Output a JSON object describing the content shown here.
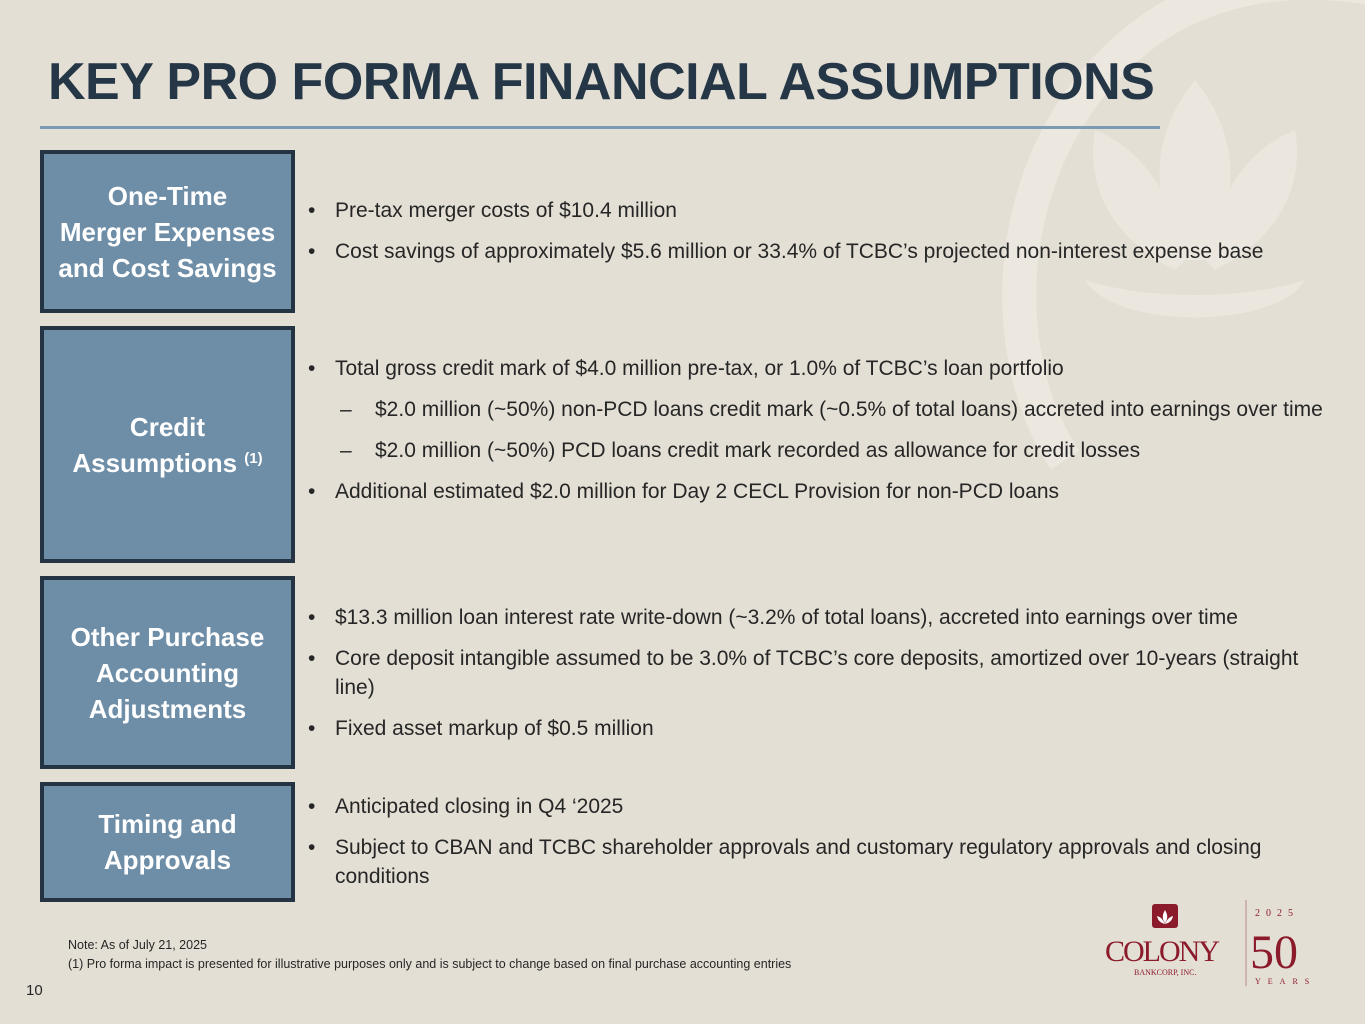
{
  "title": "KEY PRO FORMA FINANCIAL ASSUMPTIONS",
  "sections": [
    {
      "label": "One-Time Merger Expenses and Cost Savings",
      "label_lines": [
        "One-Time",
        "Merger Expenses",
        "and Cost Savings"
      ],
      "items": [
        {
          "type": "bullet",
          "text": "Pre-tax merger costs of $10.4 million"
        },
        {
          "type": "bullet",
          "text": "Cost savings of approximately $5.6 million or 33.4% of TCBC’s projected non-interest expense base"
        }
      ]
    },
    {
      "label": "Credit Assumptions (1)",
      "label_lines": [
        "Credit",
        "Assumptions"
      ],
      "label_sup": "(1)",
      "items": [
        {
          "type": "bullet",
          "text": "Total gross credit mark of $4.0 million pre-tax, or 1.0% of TCBC’s loan portfolio"
        },
        {
          "type": "sub",
          "text": "$2.0 million (~50%) non-PCD loans credit mark (~0.5% of total loans) accreted into earnings over time"
        },
        {
          "type": "sub",
          "text": "$2.0 million (~50%) PCD loans credit mark recorded as allowance for credit losses"
        },
        {
          "type": "bullet",
          "text": "Additional estimated $2.0 million for Day 2 CECL Provision for non-PCD loans"
        }
      ]
    },
    {
      "label": "Other Purchase Accounting Adjustments",
      "label_lines": [
        "Other Purchase",
        "Accounting",
        "Adjustments"
      ],
      "items": [
        {
          "type": "bullet",
          "text": "$13.3 million loan interest rate write-down (~3.2% of total loans), accreted into earnings over time"
        },
        {
          "type": "bullet",
          "text": "Core deposit intangible assumed to be 3.0% of TCBC’s core deposits, amortized over 10-years (straight line)"
        },
        {
          "type": "bullet",
          "text": "Fixed asset markup of $0.5 million"
        }
      ]
    },
    {
      "label": "Timing and Approvals",
      "label_lines": [
        "Timing and",
        "Approvals"
      ],
      "items": [
        {
          "type": "bullet",
          "text": "Anticipated closing in Q4 ‘2025"
        },
        {
          "type": "bullet",
          "text": "Subject to CBAN and TCBC shareholder approvals and customary regulatory approvals and closing conditions"
        }
      ]
    }
  ],
  "notes": [
    "Note: As of July 21, 2025",
    "(1) Pro forma impact is presented for illustrative purposes only and is subject to change based on final purchase accounting entries"
  ],
  "page_number": "10",
  "logo": {
    "name": "COLONY",
    "sub": "BANKCORP, INC.",
    "year": "2 0 2 5",
    "anniv": "50",
    "years": "Y E A R S"
  },
  "colors": {
    "title": "#253746",
    "box_fill": "#6e8ea8",
    "box_border": "#243442",
    "background": "#e4dfd5",
    "logo": "#8b1a2b"
  }
}
